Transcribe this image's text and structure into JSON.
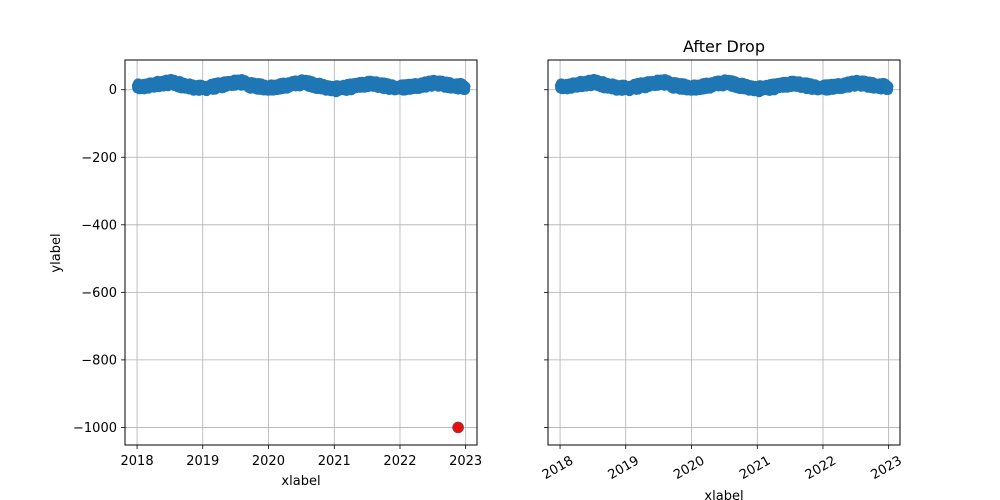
{
  "chart_data": [
    {
      "type": "scatter",
      "title": "",
      "xlabel": "xlabel",
      "ylabel": "ylabel",
      "xlim": [
        "2017-10-26",
        "2023-03-05"
      ],
      "ylim": [
        -1052,
        88
      ],
      "xticks": [
        "2018",
        "2019",
        "2020",
        "2021",
        "2022",
        "2023"
      ],
      "yticks": [
        0,
        -200,
        -400,
        -600,
        -800,
        -1000
      ],
      "ytick_labels": [
        "0",
        "−200",
        "−400",
        "−600",
        "−800",
        "−1000"
      ],
      "grid": true,
      "series": [
        {
          "color": "#1f77b4",
          "description": "daily seasonal values",
          "x_range": [
            "2018-01-01",
            "2022-12-31"
          ],
          "points": [
            [
              "2018-01-01",
              8
            ],
            [
              "2018-03-01",
              10
            ],
            [
              "2018-05-01",
              18
            ],
            [
              "2018-07-15",
              22
            ],
            [
              "2018-10-01",
              10
            ],
            [
              "2019-01-01",
              4
            ],
            [
              "2019-04-01",
              12
            ],
            [
              "2019-07-20",
              24
            ],
            [
              "2019-10-01",
              12
            ],
            [
              "2020-01-01",
              6
            ],
            [
              "2020-04-01",
              12
            ],
            [
              "2020-07-15",
              22
            ],
            [
              "2020-10-01",
              12
            ],
            [
              "2021-01-01",
              2
            ],
            [
              "2021-04-01",
              8
            ],
            [
              "2021-07-15",
              18
            ],
            [
              "2021-10-01",
              12
            ],
            [
              "2022-01-01",
              6
            ],
            [
              "2022-04-01",
              12
            ],
            [
              "2022-07-15",
              20
            ],
            [
              "2022-10-01",
              14
            ],
            [
              "2022-12-31",
              8
            ]
          ],
          "spread": 20
        },
        {
          "color": "#e8100f",
          "description": "outlier",
          "points": [
            [
              "2022-11-20",
              -1000
            ]
          ]
        }
      ]
    },
    {
      "type": "scatter",
      "title": "After Drop",
      "xlabel": "xlabel",
      "ylabel": "",
      "xlim": [
        "2017-10-26",
        "2023-03-05"
      ],
      "ylim": [
        -1052,
        88
      ],
      "xticks": [
        "2018",
        "2019",
        "2020",
        "2021",
        "2022",
        "2023"
      ],
      "xtick_rotation": 30,
      "yticks": [
        0,
        -200,
        -400,
        -600,
        -800,
        -1000
      ],
      "grid": true,
      "series": [
        {
          "color": "#1f77b4",
          "description": "daily seasonal values",
          "x_range": [
            "2018-01-01",
            "2022-12-31"
          ],
          "points": [
            [
              "2018-01-01",
              8
            ],
            [
              "2018-03-01",
              10
            ],
            [
              "2018-05-01",
              18
            ],
            [
              "2018-07-15",
              22
            ],
            [
              "2018-10-01",
              10
            ],
            [
              "2019-01-01",
              4
            ],
            [
              "2019-04-01",
              12
            ],
            [
              "2019-07-20",
              24
            ],
            [
              "2019-10-01",
              12
            ],
            [
              "2020-01-01",
              6
            ],
            [
              "2020-04-01",
              12
            ],
            [
              "2020-07-15",
              22
            ],
            [
              "2020-10-01",
              12
            ],
            [
              "2021-01-01",
              2
            ],
            [
              "2021-04-01",
              8
            ],
            [
              "2021-07-15",
              18
            ],
            [
              "2021-10-01",
              12
            ],
            [
              "2022-01-01",
              6
            ],
            [
              "2022-04-01",
              12
            ],
            [
              "2022-07-15",
              20
            ],
            [
              "2022-10-01",
              14
            ],
            [
              "2022-12-31",
              8
            ]
          ],
          "spread": 20
        }
      ]
    }
  ]
}
